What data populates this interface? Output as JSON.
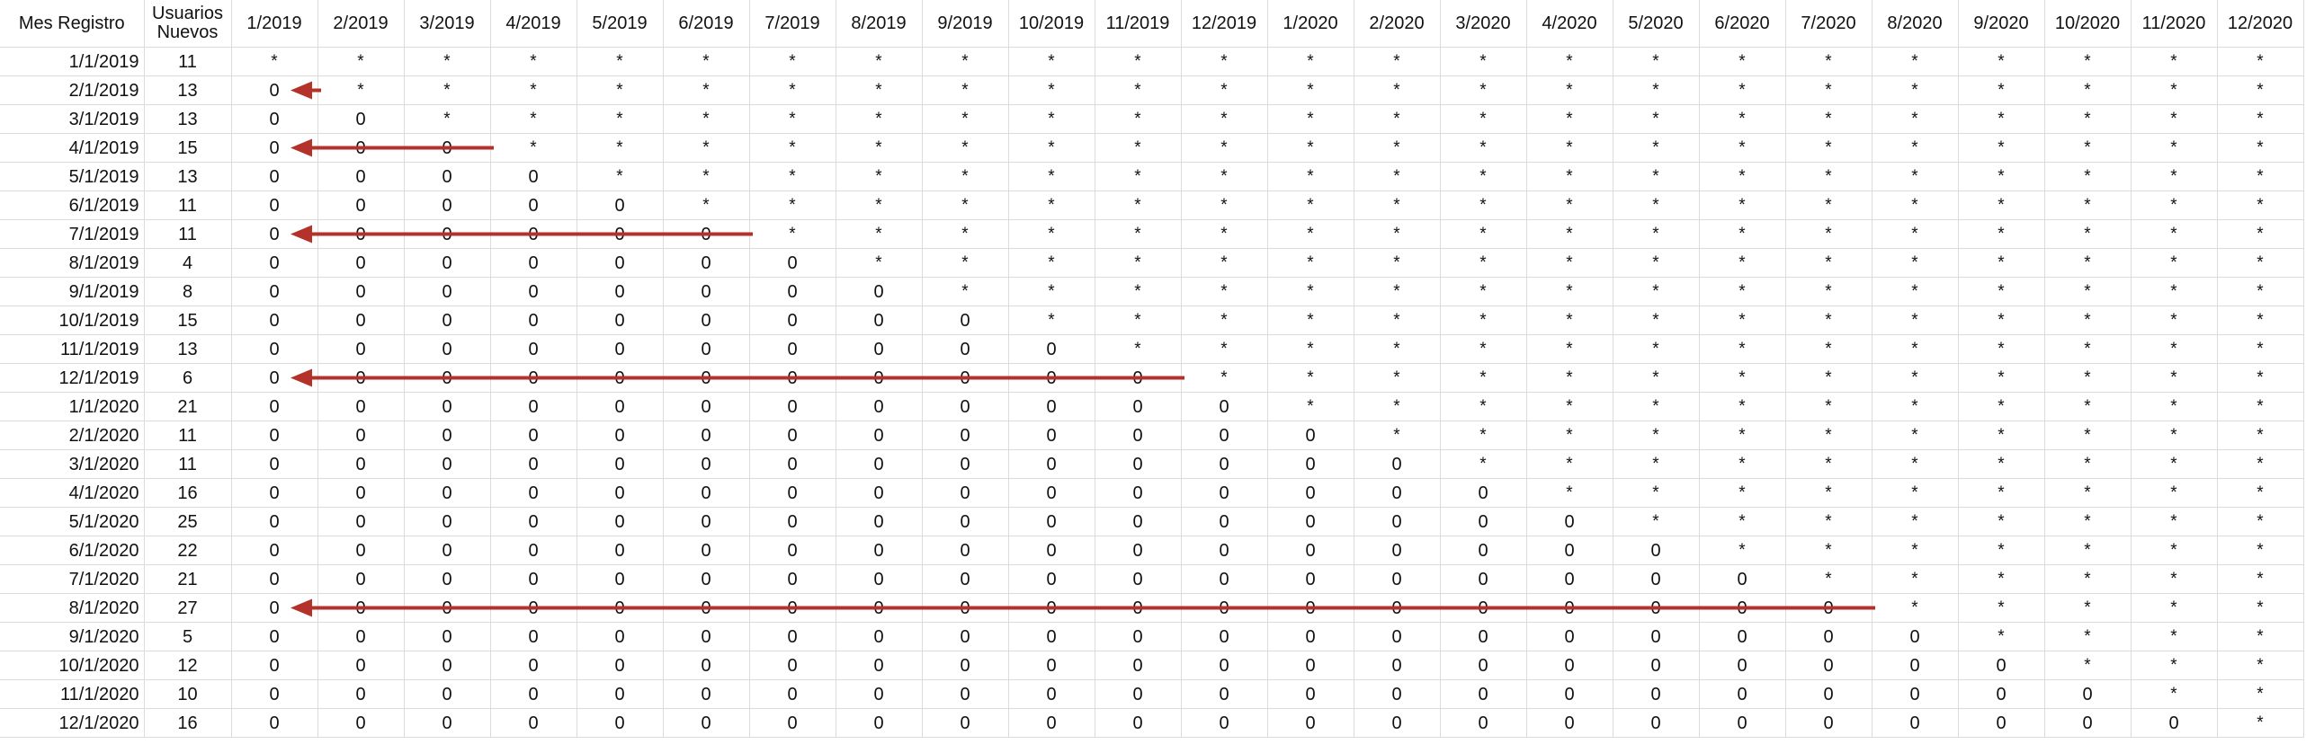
{
  "header": {
    "registration_month": "Mes Registro",
    "new_users": "Usuarios Nuevos",
    "months": [
      "1/2019",
      "2/2019",
      "3/2019",
      "4/2019",
      "5/2019",
      "6/2019",
      "7/2019",
      "8/2019",
      "9/2019",
      "10/2019",
      "11/2019",
      "12/2019",
      "1/2020",
      "2/2020",
      "3/2020",
      "4/2020",
      "5/2020",
      "6/2020",
      "7/2020",
      "8/2020",
      "9/2020",
      "10/2020",
      "11/2020",
      "12/2020"
    ]
  },
  "rows": [
    {
      "month": "1/1/2019",
      "users": "11"
    },
    {
      "month": "2/1/2019",
      "users": "13"
    },
    {
      "month": "3/1/2019",
      "users": "13"
    },
    {
      "month": "4/1/2019",
      "users": "15"
    },
    {
      "month": "5/1/2019",
      "users": "13"
    },
    {
      "month": "6/1/2019",
      "users": "11"
    },
    {
      "month": "7/1/2019",
      "users": "11"
    },
    {
      "month": "8/1/2019",
      "users": "4"
    },
    {
      "month": "9/1/2019",
      "users": "8"
    },
    {
      "month": "10/1/2019",
      "users": "15"
    },
    {
      "month": "11/1/2019",
      "users": "13"
    },
    {
      "month": "12/1/2019",
      "users": "6"
    },
    {
      "month": "1/1/2020",
      "users": "21"
    },
    {
      "month": "2/1/2020",
      "users": "11"
    },
    {
      "month": "3/1/2020",
      "users": "11"
    },
    {
      "month": "4/1/2020",
      "users": "16"
    },
    {
      "month": "5/1/2020",
      "users": "25"
    },
    {
      "month": "6/1/2020",
      "users": "22"
    },
    {
      "month": "7/1/2020",
      "users": "21"
    },
    {
      "month": "8/1/2020",
      "users": "27"
    },
    {
      "month": "9/1/2020",
      "users": "5"
    },
    {
      "month": "10/1/2020",
      "users": "12"
    },
    {
      "month": "11/1/2020",
      "users": "10"
    },
    {
      "month": "12/1/2020",
      "users": "16"
    }
  ],
  "cell_values": {
    "before_registration": "0",
    "from_registration": "*"
  },
  "annotations": {
    "arrow_color": "#b5322a",
    "arrow_rows": [
      "2/1/2019",
      "4/1/2019",
      "7/1/2019",
      "12/1/2019",
      "8/1/2020"
    ]
  }
}
